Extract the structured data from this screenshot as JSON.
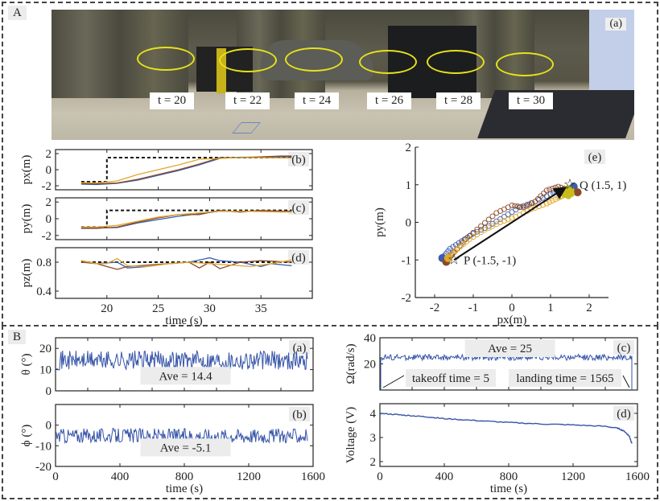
{
  "panelA": {
    "tag": "A",
    "photo": {
      "subtag": "(a)",
      "time_labels": [
        "t = 20",
        "t = 22",
        "t = 24",
        "t = 26",
        "t = 28",
        "t = 30"
      ]
    }
  },
  "panelB": {
    "tag": "B"
  },
  "colors": {
    "blue": "#3a5eb0",
    "brown": "#8a4a2a",
    "yellow": "#e0a82a",
    "olive": "#c8bc1c",
    "dashed": "#111111",
    "trace": "#3553a8"
  },
  "chart_data": [
    {
      "id": "A-b",
      "type": "line",
      "tag": "(b)",
      "ylabel": "px(m)",
      "xlabel": "",
      "xlim": [
        15,
        40
      ],
      "ylim": [
        -2.5,
        2.5
      ],
      "yticks": [
        -2,
        0,
        2
      ],
      "xticks": [
        20,
        25,
        30,
        35
      ],
      "series": [
        {
          "name": "reference",
          "style": "dashed",
          "x": [
            17.5,
            20,
            20,
            38
          ],
          "y": [
            -1.5,
            -1.5,
            1.5,
            1.5
          ]
        },
        {
          "name": "blue",
          "x": [
            17.5,
            19,
            21,
            23,
            25,
            27,
            29,
            31,
            33,
            35,
            37,
            38
          ],
          "y": [
            -1.8,
            -1.85,
            -1.7,
            -1.3,
            -0.7,
            -0.1,
            0.6,
            1.4,
            1.55,
            1.55,
            1.6,
            1.6
          ]
        },
        {
          "name": "brown",
          "x": [
            17.5,
            19,
            21,
            23,
            25,
            27,
            29,
            31,
            33,
            35,
            37,
            38
          ],
          "y": [
            -1.7,
            -1.75,
            -1.65,
            -1.2,
            -0.6,
            0.0,
            0.7,
            1.5,
            1.5,
            1.6,
            1.7,
            1.7
          ]
        },
        {
          "name": "yellow",
          "x": [
            17.5,
            19,
            21,
            23,
            25,
            27,
            29,
            31,
            33,
            35,
            37,
            38
          ],
          "y": [
            -1.6,
            -1.65,
            -1.4,
            -0.6,
            0.0,
            0.6,
            1.3,
            1.4,
            1.5,
            1.5,
            1.45,
            1.45
          ]
        }
      ]
    },
    {
      "id": "A-c",
      "type": "line",
      "tag": "(c)",
      "ylabel": "py(m)",
      "xlabel": "",
      "xlim": [
        15,
        40
      ],
      "ylim": [
        -2.5,
        2.5
      ],
      "yticks": [
        -2,
        0,
        2
      ],
      "xticks": [
        20,
        25,
        30,
        35
      ],
      "series": [
        {
          "name": "reference",
          "style": "dashed",
          "x": [
            17.5,
            20,
            20,
            38
          ],
          "y": [
            -1,
            -1,
            1,
            1
          ]
        },
        {
          "name": "blue",
          "x": [
            17.5,
            19,
            21,
            23,
            25,
            27,
            29,
            31,
            33,
            35,
            37,
            38
          ],
          "y": [
            -1.1,
            -1.1,
            -1.05,
            -0.5,
            -0.1,
            0.3,
            0.6,
            0.9,
            0.85,
            0.95,
            0.9,
            0.9
          ]
        },
        {
          "name": "brown",
          "x": [
            17.5,
            19,
            21,
            23,
            25,
            27,
            29,
            31,
            33,
            35,
            37,
            38
          ],
          "y": [
            -1.15,
            -1.15,
            -1.0,
            -0.4,
            0.1,
            0.5,
            0.5,
            1.0,
            0.8,
            1.0,
            0.9,
            0.9
          ]
        },
        {
          "name": "yellow",
          "x": [
            17.5,
            19,
            21,
            23,
            25,
            27,
            29,
            31,
            33,
            35,
            37,
            38
          ],
          "y": [
            -1.0,
            -1.0,
            -0.8,
            -0.3,
            0.2,
            0.5,
            0.7,
            0.9,
            0.9,
            0.85,
            0.8,
            0.8
          ]
        }
      ]
    },
    {
      "id": "A-d",
      "type": "line",
      "tag": "(d)",
      "ylabel": "pz(m)",
      "xlabel": "time (s)",
      "xlim": [
        15,
        40
      ],
      "ylim": [
        0.3,
        1.0
      ],
      "yticks": [
        0.4,
        0.8
      ],
      "xticks": [
        20,
        25,
        30,
        35
      ],
      "series": [
        {
          "name": "reference",
          "style": "dashed",
          "x": [
            17.5,
            38
          ],
          "y": [
            0.8,
            0.8
          ]
        },
        {
          "name": "blue",
          "x": [
            17.5,
            19,
            21,
            22,
            24,
            26,
            28,
            30,
            31,
            33,
            35,
            36,
            38
          ],
          "y": [
            0.82,
            0.78,
            0.8,
            0.72,
            0.74,
            0.78,
            0.8,
            0.86,
            0.82,
            0.8,
            0.74,
            0.78,
            0.75
          ]
        },
        {
          "name": "brown",
          "x": [
            17.5,
            19,
            21,
            22,
            24,
            26,
            28,
            29,
            30,
            31,
            33,
            35,
            38
          ],
          "y": [
            0.8,
            0.78,
            0.7,
            0.74,
            0.76,
            0.78,
            0.8,
            0.72,
            0.8,
            0.71,
            0.8,
            0.82,
            0.8
          ]
        },
        {
          "name": "yellow",
          "x": [
            17.5,
            19,
            20,
            21,
            22,
            24,
            26,
            28,
            30,
            32,
            34,
            36,
            38
          ],
          "y": [
            0.82,
            0.78,
            0.78,
            0.85,
            0.75,
            0.74,
            0.78,
            0.8,
            0.78,
            0.76,
            0.74,
            0.78,
            0.83
          ]
        }
      ]
    },
    {
      "id": "A-e",
      "type": "scatter",
      "tag": "(e)",
      "xlabel": "px(m)",
      "ylabel": "py(m)",
      "xlim": [
        -2.5,
        2.5
      ],
      "ylim": [
        -2,
        2
      ],
      "xticks": [
        -2,
        -1,
        0,
        1,
        2
      ],
      "yticks": [
        -2,
        -1,
        0,
        1,
        2
      ],
      "annotations": [
        {
          "text": "P (-1.5, -1)",
          "x": -1.5,
          "y": -1
        },
        {
          "text": "Q (1.5, 1)",
          "x": 1.5,
          "y": 1
        }
      ],
      "arrow": {
        "from": [
          -1.5,
          -1
        ],
        "to": [
          1.35,
          0.9
        ]
      },
      "series": [
        {
          "name": "blue",
          "x": [
            -1.8,
            -1.6,
            -1.3,
            -1.0,
            -0.6,
            -0.2,
            0.2,
            0.6,
            1.0,
            1.3,
            1.6
          ],
          "y": [
            -0.95,
            -0.7,
            -0.5,
            -0.3,
            -0.1,
            0.15,
            0.4,
            0.55,
            0.75,
            0.85,
            0.95
          ]
        },
        {
          "name": "brown",
          "x": [
            -1.7,
            -1.5,
            -1.2,
            -0.8,
            -0.4,
            0.0,
            0.3,
            0.6,
            0.9,
            1.2,
            1.5,
            1.7
          ],
          "y": [
            -1.05,
            -0.8,
            -0.45,
            -0.1,
            0.25,
            0.45,
            0.4,
            0.55,
            0.85,
            0.95,
            0.85,
            0.8
          ]
        },
        {
          "name": "yellow",
          "x": [
            -1.65,
            -1.4,
            -1.1,
            -0.7,
            -0.3,
            0.1,
            0.5,
            0.9,
            1.2,
            1.4,
            1.5
          ],
          "y": [
            -0.95,
            -0.7,
            -0.45,
            -0.2,
            0.0,
            0.15,
            0.35,
            0.5,
            0.65,
            0.75,
            0.8
          ]
        }
      ]
    },
    {
      "id": "B-a",
      "type": "line",
      "tag": "(a)",
      "ylabel": "θ (°)",
      "xlabel": "",
      "xlim": [
        0,
        1600
      ],
      "ylim": [
        0,
        25
      ],
      "yticks": [
        0,
        10,
        20
      ],
      "xticks": [
        0,
        200,
        400,
        600,
        800,
        1000,
        1200,
        1400,
        1600
      ],
      "mean": 14.4,
      "noise_range": [
        9,
        23
      ],
      "annotation": "Ave = 14.4"
    },
    {
      "id": "B-b",
      "type": "line",
      "tag": "(b)",
      "ylabel": "ϕ (°)",
      "xlabel": "time (s)",
      "xlim": [
        0,
        1600
      ],
      "ylim": [
        -20,
        10
      ],
      "yticks": [
        -20,
        -10,
        0
      ],
      "xticks": [
        0,
        400,
        800,
        1200,
        1600
      ],
      "mean": -5.1,
      "noise_range": [
        -10,
        1
      ],
      "annotation": "Ave = -5.1"
    },
    {
      "id": "B-c",
      "type": "line",
      "tag": "(c)",
      "ylabel": "Ω(rad/s)",
      "xlabel": "",
      "xlim": [
        0,
        1600
      ],
      "ylim": [
        0,
        40
      ],
      "yticks": [
        20,
        40
      ],
      "xticks": [
        0,
        200,
        400,
        600,
        800,
        1000,
        1200,
        1400,
        1600
      ],
      "mean": 25,
      "noise_range": [
        22,
        29
      ],
      "annotation": "Ave = 25",
      "takeoff_label": "takeoff time = 5",
      "landing_label": "landing time = 1565",
      "takeoff": 5,
      "landing": 1565
    },
    {
      "id": "B-d",
      "type": "line",
      "tag": "(d)",
      "ylabel": "Voltage (V)",
      "xlabel": "time (s)",
      "xlim": [
        0,
        1600
      ],
      "ylim": [
        1.8,
        4.4
      ],
      "yticks": [
        2,
        3,
        4
      ],
      "xticks": [
        0,
        400,
        800,
        1200,
        1600
      ],
      "x": [
        0,
        100,
        200,
        300,
        400,
        600,
        800,
        1000,
        1200,
        1400,
        1480,
        1520,
        1550,
        1565
      ],
      "y": [
        4.0,
        3.95,
        3.9,
        3.85,
        3.78,
        3.7,
        3.62,
        3.56,
        3.52,
        3.46,
        3.38,
        3.25,
        3.05,
        2.75
      ]
    }
  ]
}
